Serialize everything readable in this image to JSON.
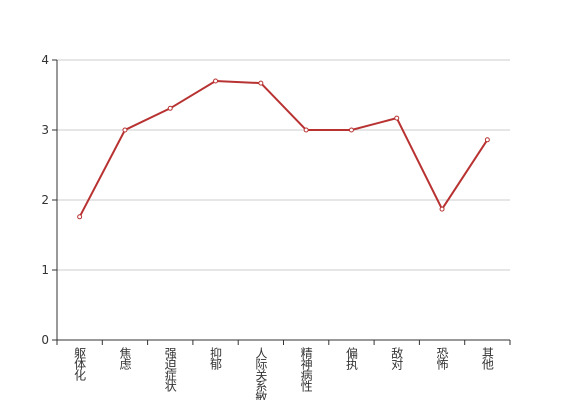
{
  "chart_data": {
    "type": "line",
    "categories": [
      "躯体化",
      "焦虑",
      "强迫症状",
      "抑郁",
      "人际关系敏感",
      "精神病性",
      "偏执",
      "敌对",
      "恐怖",
      "其他"
    ],
    "series": [
      {
        "color": "#b83232",
        "values": [
          1.76,
          3.0,
          3.31,
          3.7,
          3.67,
          3.0,
          3.0,
          3.17,
          1.87,
          2.86
        ]
      }
    ],
    "ylim": [
      0,
      4
    ],
    "yticks": [
      0,
      1,
      2,
      3,
      4
    ],
    "grid": true
  }
}
